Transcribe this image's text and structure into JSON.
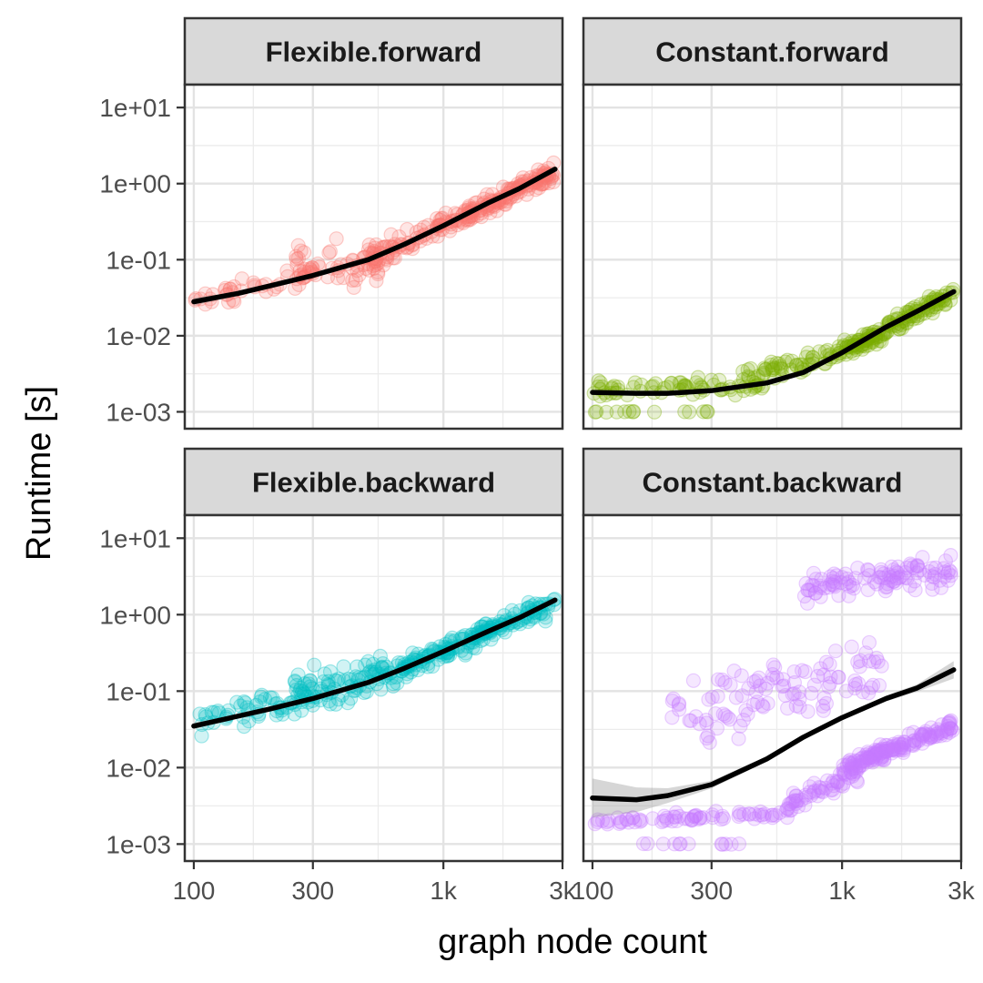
{
  "chart_data": {
    "type": "scatter",
    "xlabel": "graph node count",
    "ylabel": "Runtime [s]",
    "x_scale": "log10",
    "y_scale": "log10",
    "xlim": [
      92,
      3000
    ],
    "ylim": [
      0.0006,
      20
    ],
    "x_ticks": [
      {
        "value": 100,
        "label": "100"
      },
      {
        "value": 300,
        "label": "300"
      },
      {
        "value": 1000,
        "label": "1k"
      },
      {
        "value": 3000,
        "label": "3k"
      }
    ],
    "y_ticks": [
      {
        "value": 0.001,
        "label": "1e-03"
      },
      {
        "value": 0.01,
        "label": "1e-02"
      },
      {
        "value": 0.1,
        "label": "1e-01"
      },
      {
        "value": 1,
        "label": "1e+00"
      },
      {
        "value": 10,
        "label": "1e+01"
      }
    ],
    "grid": true,
    "legend": "none",
    "panels": [
      {
        "title": "Flexible.forward",
        "color": "#F8766D",
        "trend": {
          "x": [
            100,
            150,
            200,
            300,
            500,
            700,
            1000,
            1500,
            2000,
            2800
          ],
          "y": [
            0.028,
            0.036,
            0.045,
            0.062,
            0.1,
            0.16,
            0.28,
            0.55,
            0.85,
            1.55
          ]
        },
        "band_width": [
          1.12,
          1.06,
          1.04,
          1.03,
          1.03,
          1.03,
          1.03,
          1.04,
          1.05,
          1.08
        ],
        "clusters": [
          {
            "x": [
              100,
              300
            ],
            "y_center": [
              0.03,
              0.065
            ],
            "spread": 1.6,
            "n": 45
          },
          {
            "x": [
              250,
              600
            ],
            "y_center": [
              0.08,
              0.1
            ],
            "spread": 2.6,
            "n": 55
          },
          {
            "x": [
              500,
              1000
            ],
            "y_center": [
              0.1,
              0.28
            ],
            "spread": 1.7,
            "n": 70
          },
          {
            "x": [
              1000,
              2800
            ],
            "y_center": [
              0.28,
              1.4
            ],
            "spread": 1.5,
            "n": 160
          }
        ]
      },
      {
        "title": "Constant.forward",
        "color": "#7CAE00",
        "trend": {
          "x": [
            100,
            150,
            200,
            300,
            500,
            700,
            1000,
            1500,
            2000,
            2800
          ],
          "y": [
            0.0018,
            0.00175,
            0.00175,
            0.0019,
            0.0024,
            0.0033,
            0.006,
            0.013,
            0.021,
            0.038
          ]
        },
        "band_width": [
          1.06,
          1.04,
          1.03,
          1.03,
          1.03,
          1.03,
          1.03,
          1.04,
          1.05,
          1.07
        ],
        "clusters": [
          {
            "x": [
              100,
              500
            ],
            "y_center": [
              0.002,
              0.0022
            ],
            "spread": 1.45,
            "n": 70
          },
          {
            "x": [
              100,
              300
            ],
            "y_center": [
              0.001,
              0.001
            ],
            "spread": 1.02,
            "n": 14
          },
          {
            "x": [
              400,
              1000
            ],
            "y_center": [
              0.0028,
              0.006
            ],
            "spread": 1.5,
            "n": 60
          },
          {
            "x": [
              1000,
              2800
            ],
            "y_center": [
              0.006,
              0.036
            ],
            "spread": 1.45,
            "n": 150
          }
        ]
      },
      {
        "title": "Flexible.backward",
        "color": "#00BFC4",
        "trend": {
          "x": [
            100,
            150,
            200,
            300,
            500,
            700,
            1000,
            1500,
            2000,
            2800
          ],
          "y": [
            0.035,
            0.047,
            0.058,
            0.08,
            0.13,
            0.2,
            0.33,
            0.6,
            0.9,
            1.55
          ]
        },
        "band_width": [
          1.1,
          1.06,
          1.04,
          1.03,
          1.03,
          1.03,
          1.03,
          1.04,
          1.05,
          1.08
        ],
        "clusters": [
          {
            "x": [
              100,
              300
            ],
            "y_center": [
              0.04,
              0.08
            ],
            "spread": 1.8,
            "n": 50
          },
          {
            "x": [
              250,
              700
            ],
            "y_center": [
              0.09,
              0.17
            ],
            "spread": 2.4,
            "n": 110
          },
          {
            "x": [
              700,
              2800
            ],
            "y_center": [
              0.2,
              1.4
            ],
            "spread": 1.6,
            "n": 180
          }
        ]
      },
      {
        "title": "Constant.backward",
        "color": "#C77CFF",
        "trend": {
          "x": [
            100,
            150,
            200,
            300,
            500,
            700,
            1000,
            1500,
            2000,
            2800
          ],
          "y": [
            0.004,
            0.0038,
            0.0043,
            0.006,
            0.013,
            0.025,
            0.045,
            0.08,
            0.11,
            0.19
          ]
        },
        "band_width": [
          1.8,
          1.45,
          1.25,
          1.12,
          1.08,
          1.07,
          1.07,
          1.09,
          1.12,
          1.3
        ],
        "clusters": [
          {
            "x": [
              100,
              600
            ],
            "y_center": [
              0.002,
              0.0025
            ],
            "spread": 1.25,
            "n": 70
          },
          {
            "x": [
              150,
              400
            ],
            "y_center": [
              0.001,
              0.001
            ],
            "spread": 1.02,
            "n": 12
          },
          {
            "x": [
              600,
              1200
            ],
            "y_center": [
              0.003,
              0.01
            ],
            "spread": 1.6,
            "n": 70
          },
          {
            "x": [
              1000,
              2800
            ],
            "y_center": [
              0.01,
              0.035
            ],
            "spread": 1.35,
            "n": 150
          },
          {
            "x": [
              700,
              2800
            ],
            "y_center": [
              2.5,
              3.5
            ],
            "spread": 2.0,
            "n": 110
          },
          {
            "x": [
              200,
              1500
            ],
            "y_center": [
              0.05,
              0.2
            ],
            "spread": 4.0,
            "n": 110
          }
        ]
      }
    ]
  }
}
